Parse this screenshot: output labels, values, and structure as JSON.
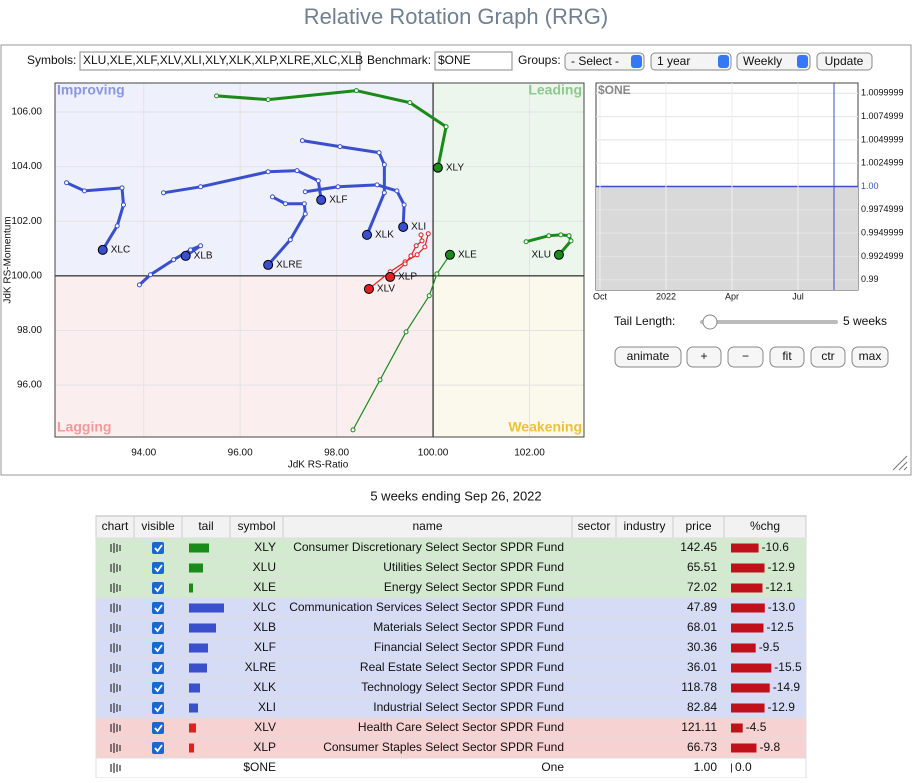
{
  "title": "Relative Rotation Graph (RRG)",
  "controls": {
    "symbols_label": "Symbols:",
    "symbols": "XLU,XLE,XLF,XLV,XLI,XLY,XLK,XLP,XLRE,XLC,XLB",
    "benchmark_label": "Benchmark:",
    "benchmark": "$ONE",
    "groups_label": "Groups:",
    "groups": "- Select -",
    "period": "1 year",
    "interval": "Weekly",
    "update": "Update"
  },
  "chart_data": {
    "type": "scatter",
    "x_label": "JdK RS-Ratio",
    "y_label": "JdK RS-Momentum",
    "quadrants": [
      "Improving",
      "Leading",
      "Lagging",
      "Weakening"
    ],
    "xlim": [
      92.16,
      103.13
    ],
    "ylim": [
      94.1,
      107.06
    ],
    "xticks": [
      {
        "value": 94,
        "label": "94.00"
      },
      {
        "value": 96,
        "label": "96.00"
      },
      {
        "value": 98,
        "label": "98.00"
      },
      {
        "value": 100,
        "label": "100.00"
      },
      {
        "value": 102,
        "label": "102.00"
      }
    ],
    "yticks": [
      {
        "value": 96,
        "label": "96.00"
      },
      {
        "value": 98,
        "label": "98.00"
      },
      {
        "value": 100,
        "label": "100.00"
      },
      {
        "value": 102,
        "label": "102.00"
      },
      {
        "value": 104,
        "label": "104.00"
      },
      {
        "value": 106,
        "label": "106.00"
      }
    ],
    "series": [
      {
        "name": "XLY",
        "color": "#1a8a1a",
        "x": [
          95.51,
          96.58,
          98.41,
          99.52,
          100.27,
          100.1
        ],
        "y": [
          106.59,
          106.45,
          106.78,
          106.34,
          105.46,
          103.96
        ]
      },
      {
        "name": "XLU",
        "color": "#1a8a1a",
        "x": [
          101.93,
          102.4,
          102.65,
          102.82,
          102.86,
          102.61
        ],
        "y": [
          101.25,
          101.47,
          101.5,
          101.47,
          101.28,
          100.77
        ]
      },
      {
        "name": "XLE",
        "color": "#1a8a1a",
        "x": [
          98.34,
          98.9,
          99.44,
          99.92,
          100.08,
          100.35
        ],
        "y": [
          94.36,
          96.19,
          97.95,
          99.27,
          100.07,
          100.77
        ]
      },
      {
        "name": "XLC",
        "color": "#3a4fcc",
        "x": [
          92.4,
          92.77,
          93.55,
          93.58,
          93.45,
          93.15
        ],
        "y": [
          103.41,
          103.11,
          103.22,
          102.6,
          101.83,
          100.95
        ]
      },
      {
        "name": "XLB",
        "color": "#3a4fcc",
        "x": [
          93.91,
          94.14,
          94.62,
          94.97,
          95.18,
          94.87
        ],
        "y": [
          99.67,
          100.04,
          100.59,
          100.95,
          101.1,
          100.73
        ]
      },
      {
        "name": "XLF",
        "color": "#3a4fcc",
        "x": [
          94.41,
          95.18,
          96.58,
          97.18,
          97.62,
          97.68
        ],
        "y": [
          103.04,
          103.26,
          103.81,
          103.85,
          103.48,
          102.78
        ]
      },
      {
        "name": "XLRE",
        "color": "#3a4fcc",
        "x": [
          96.67,
          96.94,
          97.33,
          97.35,
          97.04,
          96.58
        ],
        "y": [
          102.89,
          102.64,
          102.64,
          102.27,
          101.32,
          100.4
        ]
      },
      {
        "name": "XLK",
        "color": "#3a4fcc",
        "x": [
          97.29,
          98.07,
          98.88,
          98.99,
          98.99,
          98.63
        ],
        "y": [
          104.95,
          104.73,
          104.51,
          104.07,
          103.04,
          101.5
        ]
      },
      {
        "name": "XLI",
        "color": "#3a4fcc",
        "x": [
          97.35,
          98.03,
          98.84,
          99.25,
          99.4,
          99.38
        ],
        "y": [
          103.08,
          103.26,
          103.33,
          103.11,
          102.6,
          101.79
        ]
      },
      {
        "name": "XLV",
        "color": "#e02020",
        "x": [
          99.9,
          99.83,
          99.67,
          99.42,
          99.11,
          98.67
        ],
        "y": [
          101.54,
          101.06,
          100.77,
          100.51,
          100.15,
          99.52
        ]
      },
      {
        "name": "XLP",
        "color": "#e02020",
        "x": [
          99.75,
          99.77,
          99.65,
          99.54,
          99.42,
          99.11
        ],
        "y": [
          101.5,
          101.28,
          101.1,
          100.73,
          100.44,
          99.96
        ]
      }
    ]
  },
  "benchmark_chart": {
    "title": "$ONE",
    "xticks": [
      "Oct",
      "2022",
      "Apr",
      "Jul"
    ],
    "ylim": [
      0.9889,
      1.0111
    ],
    "yticks": [
      {
        "value": 1.0099999,
        "label": "1.0099999"
      },
      {
        "value": 1.0074999,
        "label": "1.0074999"
      },
      {
        "value": 1.0049999,
        "label": "1.0049999"
      },
      {
        "value": 1.0024999,
        "label": "1.0024999"
      },
      {
        "value": 1,
        "label": "1.00"
      },
      {
        "value": 0.9974999,
        "label": "0.9974999"
      },
      {
        "value": 0.9949999,
        "label": "0.9949999"
      },
      {
        "value": 0.9924999,
        "label": "0.9924999"
      },
      {
        "value": 0.99,
        "label": "0.99"
      }
    ]
  },
  "tail_control": {
    "label": "Tail Length:",
    "value": "5 weeks"
  },
  "buttons": [
    "animate",
    "+",
    "−",
    "fit",
    "ctr",
    "max"
  ],
  "caption": "5 weeks ending Sep 26, 2022",
  "table": {
    "columns": [
      "chart",
      "visible",
      "tail",
      "symbol",
      "name",
      "sector",
      "industry",
      "price",
      "%chg"
    ],
    "rows": [
      {
        "symbol": "XLY",
        "name": "Consumer Discretionary Select Sector SPDR Fund",
        "price": "142.45",
        "change": "-10.6",
        "tail": 20,
        "color": "#1a8a1a",
        "visible": true
      },
      {
        "symbol": "XLU",
        "name": "Utilities Select Sector SPDR Fund",
        "price": "65.51",
        "change": "-12.9",
        "tail": 14,
        "color": "#1a8a1a",
        "visible": true
      },
      {
        "symbol": "XLE",
        "name": "Energy Select Sector SPDR Fund",
        "price": "72.02",
        "change": "-12.1",
        "tail": 4,
        "color": "#1a8a1a",
        "visible": true
      },
      {
        "symbol": "XLC",
        "name": "Communication Services Select Sector SPDR Fund",
        "price": "47.89",
        "change": "-13.0",
        "tail": 35,
        "color": "#3a4fcc",
        "visible": true
      },
      {
        "symbol": "XLB",
        "name": "Materials Select Sector SPDR Fund",
        "price": "68.01",
        "change": "-12.5",
        "tail": 27,
        "color": "#3a4fcc",
        "visible": true
      },
      {
        "symbol": "XLF",
        "name": "Financial Select Sector SPDR Fund",
        "price": "30.36",
        "change": "-9.5",
        "tail": 19,
        "color": "#3a4fcc",
        "visible": true
      },
      {
        "symbol": "XLRE",
        "name": "Real Estate Select Sector SPDR Fund",
        "price": "36.01",
        "change": "-15.5",
        "tail": 18,
        "color": "#3a4fcc",
        "visible": true
      },
      {
        "symbol": "XLK",
        "name": "Technology Select Sector SPDR Fund",
        "price": "118.78",
        "change": "-14.9",
        "tail": 11,
        "color": "#3a4fcc",
        "visible": true
      },
      {
        "symbol": "XLI",
        "name": "Industrial Select Sector SPDR Fund",
        "price": "82.84",
        "change": "-12.9",
        "tail": 9,
        "color": "#3a4fcc",
        "visible": true
      },
      {
        "symbol": "XLV",
        "name": "Health Care Select Sector SPDR Fund",
        "price": "121.11",
        "change": "-4.5",
        "tail": 7,
        "color": "#e02020",
        "visible": true
      },
      {
        "symbol": "XLP",
        "name": "Consumer Staples Select Sector SPDR Fund",
        "price": "66.73",
        "change": "-9.8",
        "tail": 5,
        "color": "#e02020",
        "visible": true
      },
      {
        "symbol": "$ONE",
        "name": "One",
        "price": "1.00",
        "change": "0.0"
      }
    ]
  }
}
